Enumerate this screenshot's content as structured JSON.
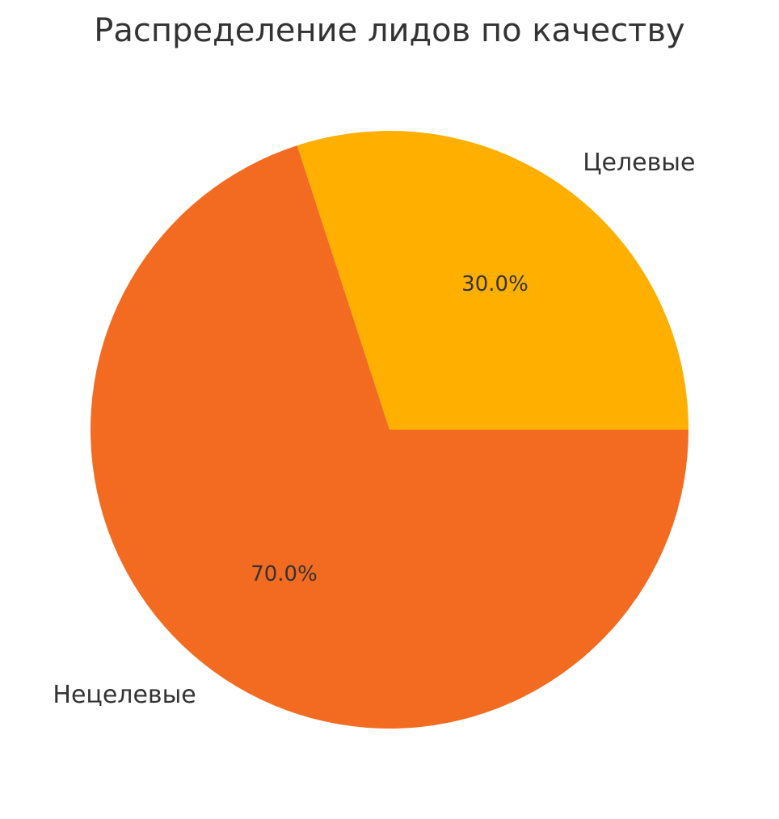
{
  "chart_data": {
    "type": "pie",
    "title": "Распределение лидов по качеству",
    "categories": [
      "Целевые",
      "Нецелевые"
    ],
    "values": [
      30,
      70
    ],
    "value_labels": [
      "30.0%",
      "70.0%"
    ],
    "colors": [
      "#ffaf00",
      "#f26b21"
    ]
  }
}
